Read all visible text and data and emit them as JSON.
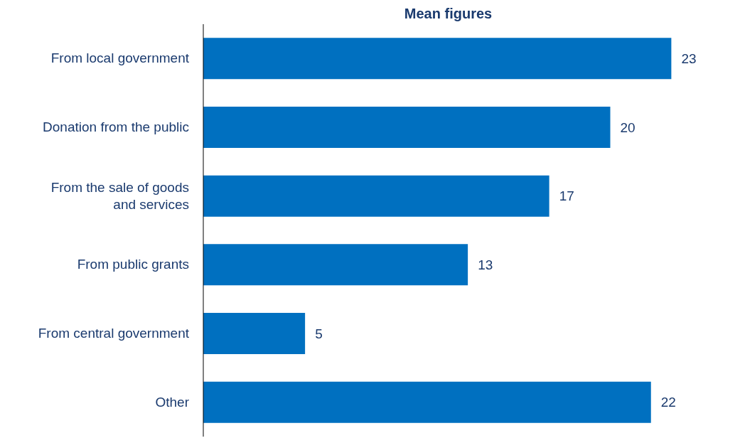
{
  "chart_data": {
    "type": "bar",
    "orientation": "horizontal",
    "title": "Mean figures",
    "categories": [
      "From local government",
      "Donation from the public",
      "From the sale of goods and services",
      "From public grants",
      "From central government",
      "Other"
    ],
    "values": [
      23,
      20,
      17,
      13,
      5,
      22
    ],
    "color": "#0070c0",
    "data_labels": true,
    "grid": false,
    "legend": false
  }
}
